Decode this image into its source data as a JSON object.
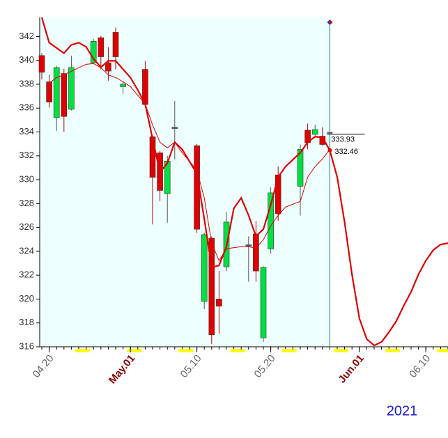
{
  "chart_data": {
    "type": "candlestick",
    "xlim": [
      "04.19",
      "06.13"
    ],
    "ylim": [
      316,
      343.6
    ],
    "yticks": [
      316,
      318,
      320,
      322,
      324,
      326,
      328,
      330,
      332,
      334,
      336,
      338,
      340,
      342
    ],
    "xticks": [
      {
        "value": "04.20",
        "label": "04.20",
        "color": "#666666"
      },
      {
        "value": "05.01",
        "label": "May.01",
        "color": "#8b0000"
      },
      {
        "value": "05.10",
        "label": "05.10",
        "color": "#666666"
      },
      {
        "value": "05.20",
        "label": "05.20",
        "color": "#666666"
      },
      {
        "value": "06.01",
        "label": "Jun.01",
        "color": "#8b0000"
      },
      {
        "value": "06.10",
        "label": "06.10",
        "color": "#666666"
      }
    ],
    "year_label": "2021",
    "up_color": "#00e040",
    "down_color": "#e00000",
    "flat_color": "#555555",
    "plot_background": "#eeffff",
    "cursor_x": "05.28",
    "cursor_color": "#008080",
    "candles": {
      "x": [
        "04.19",
        "04.20",
        "04.21",
        "04.22",
        "04.23",
        "04.26",
        "04.27",
        "04.28",
        "04.29",
        "04.30",
        "05.03",
        "05.04",
        "05.05",
        "05.06",
        "05.07",
        "05.10",
        "05.11",
        "05.12",
        "05.13",
        "05.14",
        "05.17",
        "05.18",
        "05.19",
        "05.20",
        "05.21",
        "05.24",
        "05.25",
        "05.26",
        "05.27"
      ],
      "open": [
        340.4,
        338.2,
        335.2,
        338.9,
        335.9,
        339.8,
        341.9,
        339.8,
        342.35,
        337.8,
        339.25,
        333.6,
        332.25,
        328.82,
        334.4,
        332.85,
        319.8,
        325.1,
        320.0,
        322.7,
        324.55,
        325.45,
        316.75,
        324.2,
        330.4,
        329.45,
        334.15,
        333.8,
        333.65
      ],
      "high": [
        340.6,
        338.8,
        339.55,
        339.3,
        340.4,
        341.8,
        342.05,
        341.1,
        342.75,
        338.25,
        339.95,
        333.6,
        332.4,
        332.0,
        336.6,
        333.0,
        325.55,
        325.25,
        322.35,
        327.3,
        325.25,
        326.55,
        322.75,
        329.35,
        331.1,
        332.95,
        334.7,
        334.6,
        334.4
      ],
      "low": [
        338.4,
        336.05,
        334.1,
        334.0,
        335.8,
        339.7,
        339.25,
        338.3,
        339.25,
        337.2,
        336.05,
        326.25,
        328.2,
        326.4,
        331.7,
        325.55,
        319.15,
        316.25,
        317.1,
        322.35,
        321.45,
        321.45,
        316.4,
        323.8,
        326.55,
        327.0,
        332.55,
        333.55,
        332.85
      ],
      "close": [
        339.0,
        336.5,
        339.4,
        335.3,
        339.4,
        341.6,
        340.3,
        339.1,
        340.3,
        338.0,
        336.3,
        330.2,
        329.1,
        331.56,
        334.3,
        325.85,
        325.4,
        317.0,
        319.4,
        326.45,
        324.5,
        322.35,
        322.65,
        328.9,
        327.15,
        332.55,
        333.1,
        334.2,
        332.95
      ]
    },
    "series": [
      {
        "color": "#e00000",
        "width": 1,
        "x": [
          "04.20",
          "04.21",
          "04.22",
          "04.23",
          "04.24",
          "04.25",
          "04.26",
          "04.27",
          "04.28",
          "04.29",
          "04.30",
          "05.01",
          "05.03",
          "05.04",
          "05.05",
          "05.06",
          "05.07",
          "05.08",
          "05.10",
          "05.11",
          "05.12",
          "05.13",
          "05.14",
          "05.16",
          "05.17",
          "05.18",
          "05.19",
          "05.20",
          "05.21",
          "05.22",
          "05.24",
          "05.25",
          "05.26",
          "05.27",
          "05.28"
        ],
        "values": [
          338.09,
          338.56,
          338.79,
          339.08,
          339.38,
          339.67,
          339.73,
          339.38,
          338.79,
          338.56,
          338.21,
          337.8,
          336.34,
          334.59,
          333.14,
          332.67,
          333.14,
          332.26,
          330.8,
          328.47,
          324.68,
          323.22,
          324.22,
          324.39,
          324.39,
          324.27,
          324.97,
          326.14,
          327.01,
          327.71,
          328.18,
          330.22,
          331.1,
          331.74,
          332.55
        ]
      },
      {
        "color": "#e00000",
        "width": 2.2,
        "x": [
          "04.19",
          "04.20",
          "04.22",
          "04.23",
          "04.24",
          "04.25",
          "04.26",
          "04.27",
          "04.28",
          "04.29",
          "04.30",
          "05.01",
          "05.02",
          "05.03",
          "05.04",
          "05.05",
          "05.06",
          "05.07",
          "05.08",
          "05.10",
          "05.11",
          "05.12",
          "05.13",
          "05.14",
          "05.15",
          "05.16",
          "05.17",
          "05.18",
          "05.19",
          "05.20",
          "05.21",
          "05.22",
          "05.24",
          "05.25",
          "05.26",
          "05.27",
          "05.28",
          "05.29",
          "05.30",
          "05.31",
          "06.01",
          "06.02",
          "06.03",
          "06.04",
          "06.05",
          "06.06",
          "06.07",
          "06.08",
          "06.09",
          "06.10",
          "06.11",
          "06.12",
          "06.13"
        ],
        "values": [
          343.6,
          341.48,
          340.6,
          341.3,
          341.48,
          341.13,
          340.13,
          339.43,
          339.96,
          339.96,
          339.26,
          338.56,
          337.51,
          336.34,
          333.43,
          330.63,
          331.39,
          333.14,
          332.55,
          330.51,
          326.72,
          322.64,
          322.82,
          324.39,
          327.6,
          328.47,
          327.01,
          325.26,
          325.85,
          327.89,
          330.22,
          331.1,
          332.26,
          333.14,
          333.6,
          333.55,
          332.46,
          330.22,
          326.43,
          322.06,
          318.38,
          316.64,
          316.11,
          316.4,
          317.22,
          318.15,
          319.43,
          320.6,
          322.06,
          323.22,
          324.1,
          324.57,
          324.68
        ]
      }
    ],
    "annotations": [
      {
        "value": 333.93,
        "x": "05.28",
        "color": "#000000"
      },
      {
        "value": 332.46,
        "x": "05.28",
        "color": "#000000",
        "marker_color": "#e00000"
      }
    ]
  }
}
